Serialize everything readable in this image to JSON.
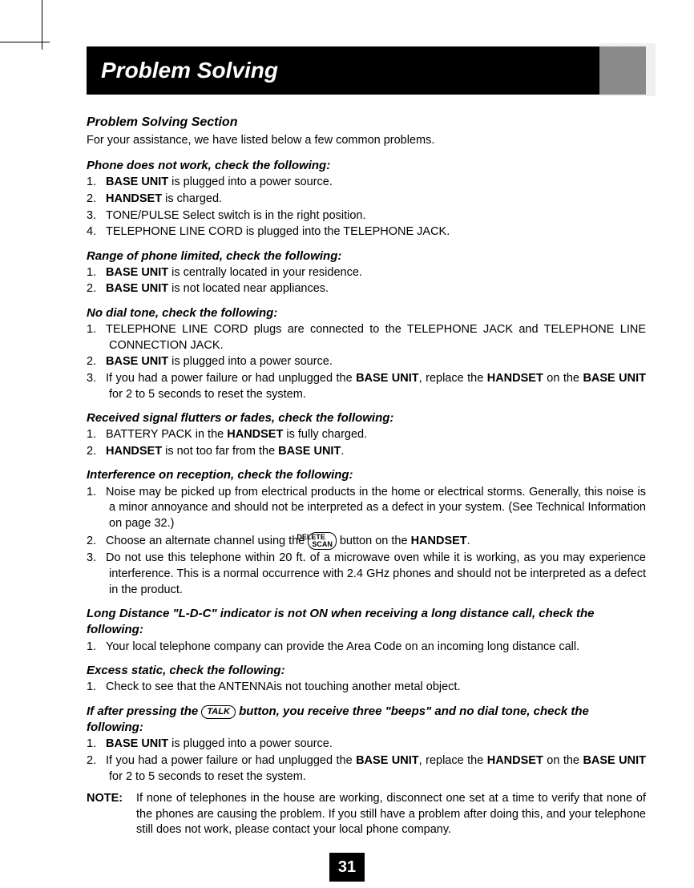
{
  "header": {
    "title": "Problem Solving"
  },
  "intro": {
    "heading": "Problem Solving Section",
    "text": "For your assistance, we have listed below a few common problems."
  },
  "sections": [
    {
      "heading": "Phone does not work, check the following:",
      "items": [
        {
          "num": "1.",
          "pre": "",
          "bold1": "BASE UNIT",
          "mid": " is plugged into a power source.",
          "bold2": "",
          "post": ""
        },
        {
          "num": "2.",
          "pre": "",
          "bold1": "HANDSET",
          "mid": " is charged.",
          "bold2": "",
          "post": ""
        },
        {
          "num": "3.",
          "pre": "TONE/PULSE Select switch is in the right position.",
          "bold1": "",
          "mid": "",
          "bold2": "",
          "post": ""
        },
        {
          "num": "4.",
          "pre": "TELEPHONE LINE CORD is plugged into the TELEPHONE JACK.",
          "bold1": "",
          "mid": "",
          "bold2": "",
          "post": ""
        }
      ]
    },
    {
      "heading": "Range of phone limited, check the following:",
      "items": [
        {
          "num": "1.",
          "pre": "",
          "bold1": "BASE UNIT",
          "mid": " is centrally located in your residence.",
          "bold2": "",
          "post": ""
        },
        {
          "num": "2.",
          "pre": "",
          "bold1": "BASE UNIT",
          "mid": " is not located near appliances.",
          "bold2": "",
          "post": ""
        }
      ]
    },
    {
      "heading": "No dial tone, check the following:",
      "items": [
        {
          "num": "1.",
          "pre": "TELEPHONE LINE CORD plugs are connected to the TELEPHONE JACK and TELEPHONE LINE CONNECTION JACK.",
          "bold1": "",
          "mid": "",
          "bold2": "",
          "post": "",
          "justify": true
        },
        {
          "num": "2.",
          "pre": "",
          "bold1": "BASE UNIT",
          "mid": " is plugged into a power source.",
          "bold2": "",
          "post": ""
        },
        {
          "num": "3.",
          "pre": "If you had a power failure or had unplugged the ",
          "bold1": "BASE UNIT",
          "mid": ", replace the ",
          "bold2": "HANDSET",
          "post": " on the ",
          "bold3": "BASE UNIT",
          "post2": " for 2 to 5 seconds to reset the system.",
          "justify": true
        }
      ]
    },
    {
      "heading": "Received signal flutters or fades, check the following:",
      "items": [
        {
          "num": "1.",
          "pre": "BATTERY PACK in the ",
          "bold1": "HANDSET",
          "mid": " is fully charged.",
          "bold2": "",
          "post": ""
        },
        {
          "num": "2.",
          "pre": "",
          "bold1": "HANDSET",
          "mid": " is not too far from the ",
          "bold2": "BASE UNIT",
          "post": "."
        }
      ]
    },
    {
      "heading": "Interference on reception, check the following:",
      "items": [
        {
          "num": "1.",
          "pre": "Noise may be picked up from electrical products in the home or electrical storms. Generally, this noise is a minor annoyance and should not be interpreted as a defect in your system. (See Technical Information on page 32.)",
          "bold1": "",
          "mid": "",
          "bold2": "",
          "post": "",
          "justify": true
        },
        {
          "num": "2.",
          "pre": "Choose an alternate channel using the ",
          "btn": "DELETE\nSCAN",
          "mid": " button on the ",
          "bold2": "HANDSET",
          "post": "."
        },
        {
          "num": "3.",
          "pre": "Do not use this telephone within 20 ft. of a microwave oven while it is working, as you may experience interference. This is a normal occurrence with 2.4 GHz phones and should not be interpreted as a defect in the product.",
          "bold1": "",
          "mid": "",
          "bold2": "",
          "post": "",
          "justify": true
        }
      ]
    },
    {
      "heading": "Long Distance \"L-D-C\" indicator is not ON when receiving a long distance call, check the following:",
      "items": [
        {
          "num": "1.",
          "pre": "Your local telephone company can provide the Area Code on an incoming long distance call.",
          "bold1": "",
          "mid": "",
          "bold2": "",
          "post": "",
          "justify": true
        }
      ]
    },
    {
      "heading": "Excess static, check the following:",
      "items": [
        {
          "num": "1.",
          "pre": "Check to see that the ANTENNAis not touching another metal object.",
          "bold1": "",
          "mid": "",
          "bold2": "",
          "post": ""
        }
      ]
    }
  ],
  "talk_heading": {
    "pre": "If after pressing the ",
    "btn": "TALK",
    "post": " button, you receive three \"beeps\" and no dial tone, check the following:"
  },
  "talk_items": [
    {
      "num": "1.",
      "pre": "",
      "bold1": "BASE UNIT",
      "mid": " is plugged into a power source.",
      "bold2": "",
      "post": ""
    },
    {
      "num": "2.",
      "pre": "If you had a power failure or had unplugged the ",
      "bold1": "BASE UNIT",
      "mid": ", replace the ",
      "bold2": "HANDSET",
      "post": " on the ",
      "bold3": "BASE UNIT",
      "post2": " for 2 to 5 seconds to reset the system.",
      "justify": true
    }
  ],
  "note": {
    "label": "NOTE:",
    "text": "If none of telephones in the house are working, disconnect one set at a time to verify that none of the phones are causing the problem. If you still have a problem after doing this, and your telephone still does not work, please contact your local phone company."
  },
  "page_number": "31"
}
